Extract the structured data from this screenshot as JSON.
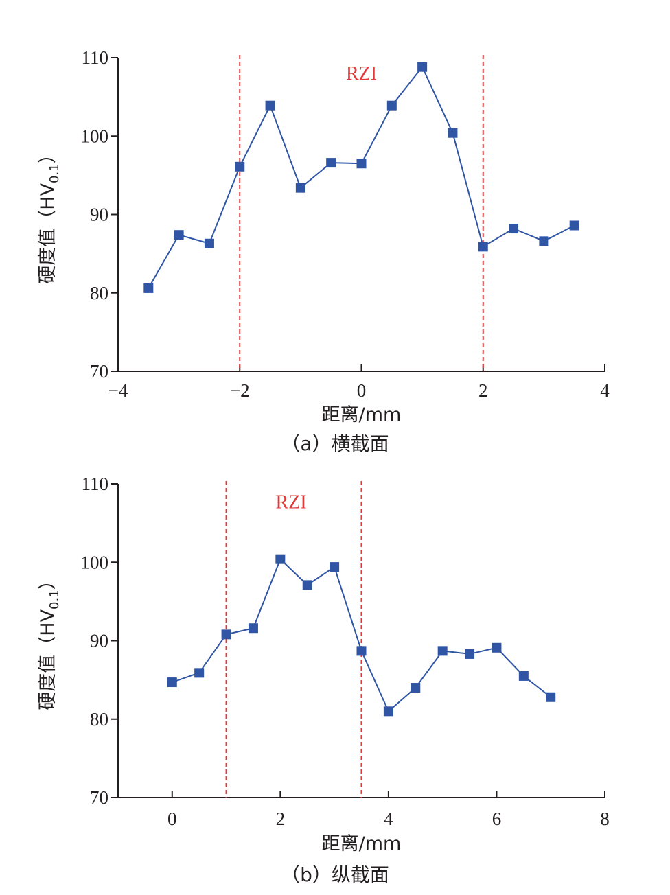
{
  "colors": {
    "series": "#2f55a4",
    "reference_line": "#e03a3a",
    "annotation": "#e03a3a",
    "axis": "#231f20"
  },
  "chart_data": [
    {
      "type": "line",
      "xlabel": "距离/mm",
      "ylabel_main": "硬度值（HV",
      "ylabel_sub": "0.1",
      "ylabel_end": "）",
      "caption": "（a）横截面",
      "xlim": [
        -4,
        4
      ],
      "ylim": [
        70,
        110
      ],
      "xticks": [
        -4,
        -2,
        0,
        2,
        4
      ],
      "xtick_labels": [
        "−4",
        "−2",
        "0",
        "2",
        "4"
      ],
      "yticks": [
        70,
        80,
        90,
        100,
        110
      ],
      "ytick_labels": [
        "70",
        "80",
        "90",
        "100",
        "110"
      ],
      "reference_lines_x": [
        -2,
        2
      ],
      "annotation": {
        "text": "RZI",
        "x": 0,
        "y": 108
      },
      "series": [
        {
          "marker": "square",
          "x": [
            -3.5,
            -3,
            -2.5,
            -2,
            -1.5,
            -1,
            -0.5,
            0,
            0.5,
            1,
            1.5,
            2,
            2.5,
            3,
            3.5
          ],
          "y": [
            80.6,
            87.4,
            86.3,
            96.1,
            103.9,
            93.4,
            96.6,
            96.5,
            103.9,
            108.8,
            100.4,
            85.9,
            88.2,
            86.6,
            88.6
          ]
        }
      ]
    },
    {
      "type": "line",
      "xlabel": "距离/mm",
      "ylabel_main": "硬度值（HV",
      "ylabel_sub": "0.1",
      "ylabel_end": "）",
      "caption": "（b）纵截面",
      "xlim": [
        -1,
        8
      ],
      "ylim": [
        70,
        110
      ],
      "xticks": [
        0,
        2,
        4,
        6,
        8
      ],
      "xtick_labels": [
        "0",
        "2",
        "4",
        "6",
        "8"
      ],
      "yticks": [
        70,
        80,
        90,
        100,
        110
      ],
      "ytick_labels": [
        "70",
        "80",
        "90",
        "100",
        "110"
      ],
      "reference_lines_x": [
        1,
        3.5
      ],
      "annotation": {
        "text": "RZI",
        "x": 2.2,
        "y": 107.7
      },
      "series": [
        {
          "marker": "square",
          "x": [
            0,
            0.5,
            1,
            1.5,
            2,
            2.5,
            3,
            3.5,
            4,
            4.5,
            5,
            5.5,
            6,
            6.5,
            7
          ],
          "y": [
            84.7,
            85.9,
            90.8,
            91.6,
            100.4,
            97.1,
            99.4,
            88.7,
            81.0,
            84.0,
            88.7,
            88.3,
            89.1,
            85.5,
            82.8
          ]
        }
      ]
    }
  ]
}
